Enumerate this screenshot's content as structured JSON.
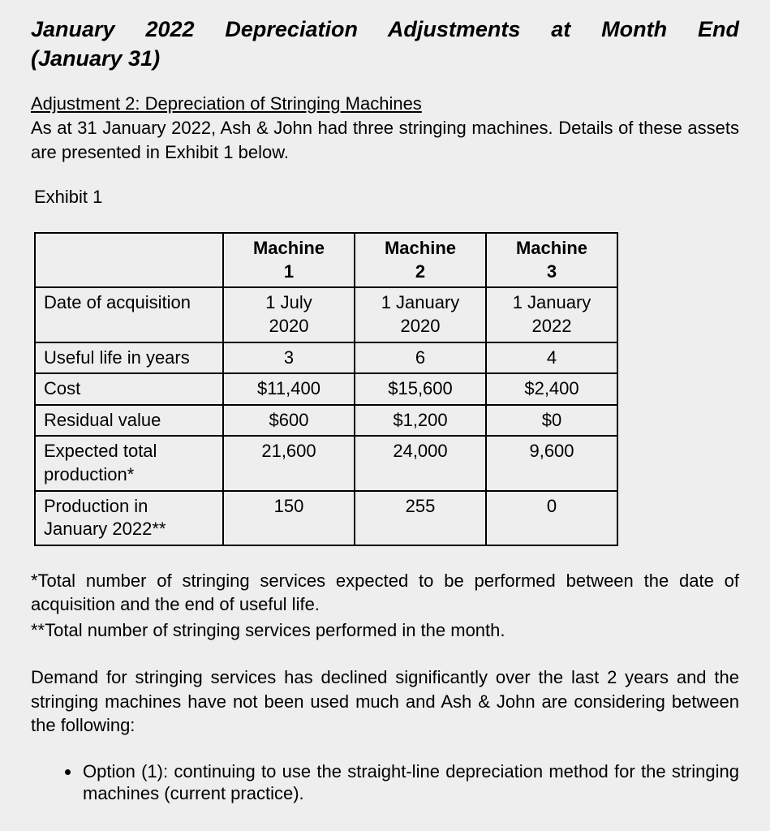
{
  "title_line1": "January 2022 Depreciation Adjustments at Month End",
  "title_line2": "(January 31)",
  "subheading": "Adjustment 2: Depreciation of Stringing Machines",
  "intro": "As at 31 January 2022, Ash & John had three stringing machines. Details of these assets are presented in Exhibit 1 below.",
  "exhibit_label": "Exhibit 1",
  "table": {
    "headers": [
      "Machine 1",
      "Machine 2",
      "Machine 3"
    ],
    "header_line1": [
      "Machine",
      "Machine",
      "Machine"
    ],
    "header_line2": [
      "1",
      "2",
      "3"
    ],
    "rows": [
      {
        "label": "Date of acquisition",
        "cells_line1": [
          "1 July",
          "1 January",
          "1 January"
        ],
        "cells_line2": [
          "2020",
          "2020",
          "2022"
        ]
      },
      {
        "label": "Useful life in years",
        "cells": [
          "3",
          "6",
          "4"
        ]
      },
      {
        "label": "Cost",
        "cells": [
          "$11,400",
          "$15,600",
          "$2,400"
        ]
      },
      {
        "label": "Residual value",
        "cells": [
          "$600",
          "$1,200",
          "$0"
        ]
      },
      {
        "label": "Expected total production*",
        "label_line1": "Expected total",
        "label_line2": "production*",
        "cells": [
          "21,600",
          "24,000",
          "9,600"
        ]
      },
      {
        "label": "Production in January 2022**",
        "label_line1": "Production in",
        "label_line2": "January 2022**",
        "cells": [
          "150",
          "255",
          "0"
        ]
      }
    ]
  },
  "footnote1": "*Total number of stringing services expected to be performed between the date of acquisition and the end of useful life.",
  "footnote2": "**Total number of stringing services performed in the month.",
  "para2": "Demand for stringing services has declined significantly over the last 2 years and the stringing machines have not been used much and Ash & John are considering between the following:",
  "option1": "Option (1): continuing to use the straight-line depreciation method for the stringing machines (current practice)."
}
